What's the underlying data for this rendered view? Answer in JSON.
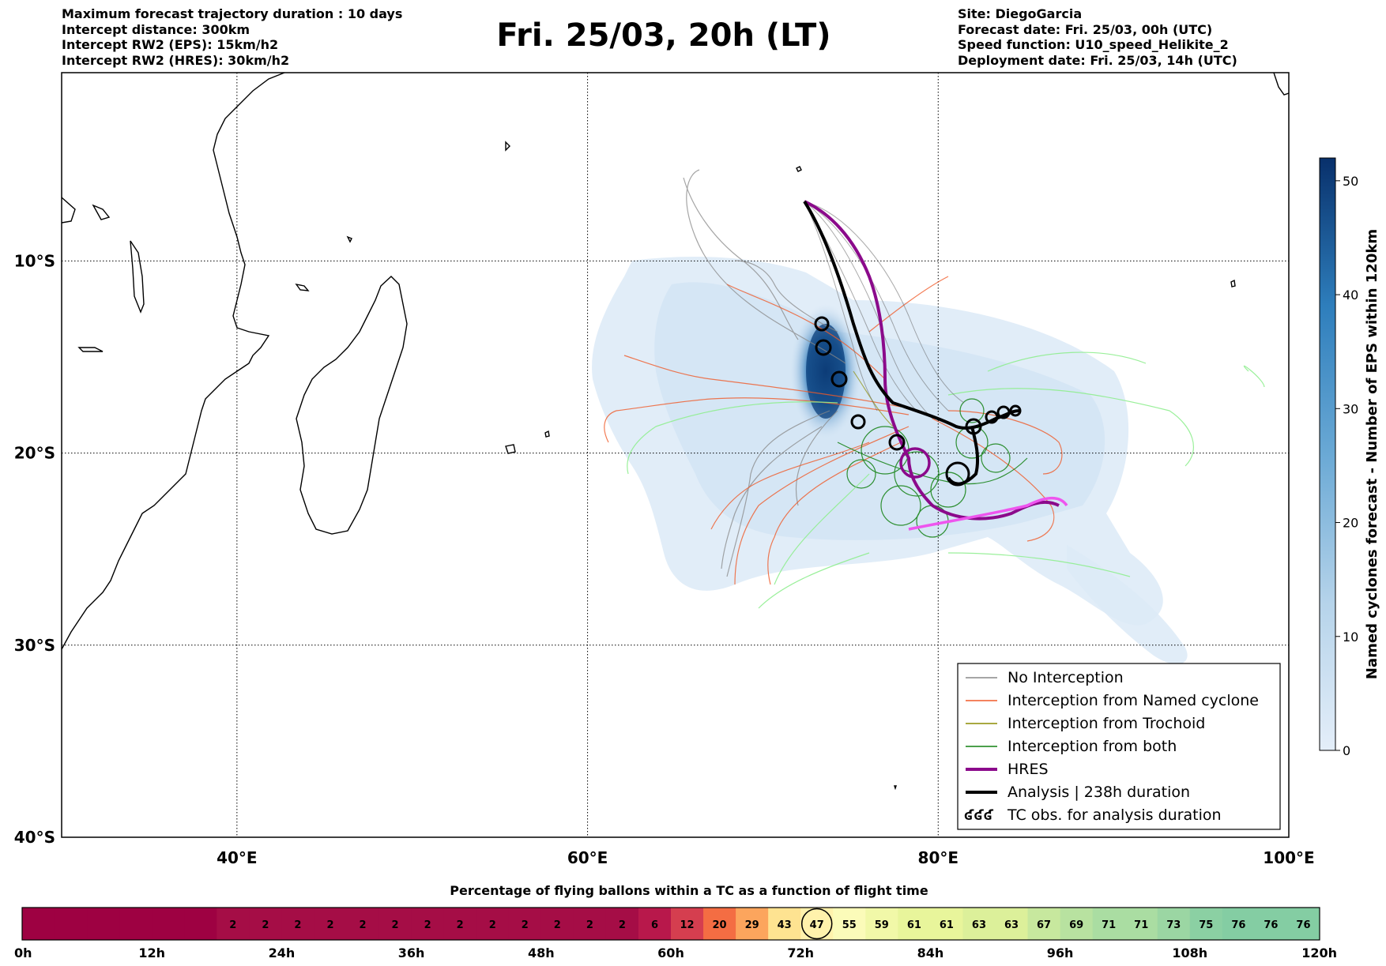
{
  "header": {
    "left_lines": [
      "Maximum forecast trajectory duration : 10 days",
      "Intercept distance: 300km",
      "Intercept RW2 (EPS):  15km/h2",
      "Intercept RW2 (HRES): 30km/h2"
    ],
    "title": "Fri. 25/03, 20h (LT)",
    "right_lines": [
      "Site: DiegoGarcia",
      "Forecast date: Fri. 25/03, 00h (UTC)",
      "Speed function: U10_speed_Helikite_2",
      "Deployment date: Fri. 25/03, 14h (UTC)"
    ]
  },
  "map": {
    "lat_labels": [
      "10°S",
      "20°S",
      "30°S",
      "40°S"
    ],
    "lon_labels": [
      "40°E",
      "60°E",
      "80°E",
      "100°E"
    ],
    "lat_values": [
      -10,
      -20,
      -30,
      -40
    ],
    "lon_values": [
      40,
      60,
      80,
      100
    ],
    "extent": {
      "lon_min": 30,
      "lon_max": 100,
      "lat_max": -0.2,
      "lat_min": -40
    }
  },
  "legend": {
    "items": [
      {
        "label": "No Interception",
        "color": "#888888",
        "width": 1.5
      },
      {
        "label": "Interception from Named cyclone",
        "color": "#f05a28",
        "width": 1.5
      },
      {
        "label": "Interception from Trochoid",
        "color": "#8b8b00",
        "width": 1.5
      },
      {
        "label": "Interception from both",
        "color": "#108010",
        "width": 1.5
      },
      {
        "label": "HRES",
        "color": "#8b0a8b",
        "width": 4
      },
      {
        "label": "Analysis | 238h duration",
        "color": "#000000",
        "width": 4
      },
      {
        "label": "TC obs. for analysis duration",
        "symbol": "ʛʛʛ"
      }
    ]
  },
  "colorbar": {
    "label": "Named cyclones forecast - Number of EPS within 120km",
    "ticks": [
      0,
      10,
      20,
      30,
      40,
      50
    ],
    "max": 52,
    "color_low": "#e4eef9",
    "color_high": "#08306b"
  },
  "timebar": {
    "title": "Percentage of flying ballons within a TC as a function of flight time",
    "time_labels": [
      "0h",
      "12h",
      "24h",
      "36h",
      "48h",
      "60h",
      "72h",
      "84h",
      "96h",
      "108h",
      "120h"
    ],
    "cells": [
      {
        "value": "",
        "color": "#9e0142"
      },
      {
        "value": "",
        "color": "#9e0142"
      },
      {
        "value": "",
        "color": "#9e0142"
      },
      {
        "value": "",
        "color": "#9e0142"
      },
      {
        "value": "",
        "color": "#9e0142"
      },
      {
        "value": "",
        "color": "#9e0142"
      },
      {
        "value": "2",
        "color": "#a50d46"
      },
      {
        "value": "2",
        "color": "#a50d46"
      },
      {
        "value": "2",
        "color": "#a50d46"
      },
      {
        "value": "2",
        "color": "#a50d46"
      },
      {
        "value": "2",
        "color": "#a50d46"
      },
      {
        "value": "2",
        "color": "#a50d46"
      },
      {
        "value": "2",
        "color": "#a50d46"
      },
      {
        "value": "2",
        "color": "#a50d46"
      },
      {
        "value": "2",
        "color": "#a50d46"
      },
      {
        "value": "2",
        "color": "#a50d46"
      },
      {
        "value": "2",
        "color": "#a50d46"
      },
      {
        "value": "2",
        "color": "#a50d46"
      },
      {
        "value": "2",
        "color": "#a50d46"
      },
      {
        "value": "6",
        "color": "#b8184b"
      },
      {
        "value": "12",
        "color": "#d53e4f"
      },
      {
        "value": "20",
        "color": "#f46d43"
      },
      {
        "value": "29",
        "color": "#fca55d"
      },
      {
        "value": "43",
        "color": "#fee391"
      },
      {
        "value": "47",
        "color": "#fff2ac",
        "highlight": true
      },
      {
        "value": "55",
        "color": "#fbfbb9"
      },
      {
        "value": "59",
        "color": "#f1f8a8"
      },
      {
        "value": "61",
        "color": "#e8f59b"
      },
      {
        "value": "61",
        "color": "#e8f59b"
      },
      {
        "value": "63",
        "color": "#dcf09a"
      },
      {
        "value": "63",
        "color": "#dcf09a"
      },
      {
        "value": "67",
        "color": "#c7e89e"
      },
      {
        "value": "69",
        "color": "#b8e2a0"
      },
      {
        "value": "71",
        "color": "#aadda2"
      },
      {
        "value": "71",
        "color": "#aadda2"
      },
      {
        "value": "73",
        "color": "#9bd6a3"
      },
      {
        "value": "75",
        "color": "#8bd0a3"
      },
      {
        "value": "76",
        "color": "#84cda3"
      },
      {
        "value": "76",
        "color": "#84cda3"
      },
      {
        "value": "76",
        "color": "#84cda3"
      }
    ]
  }
}
